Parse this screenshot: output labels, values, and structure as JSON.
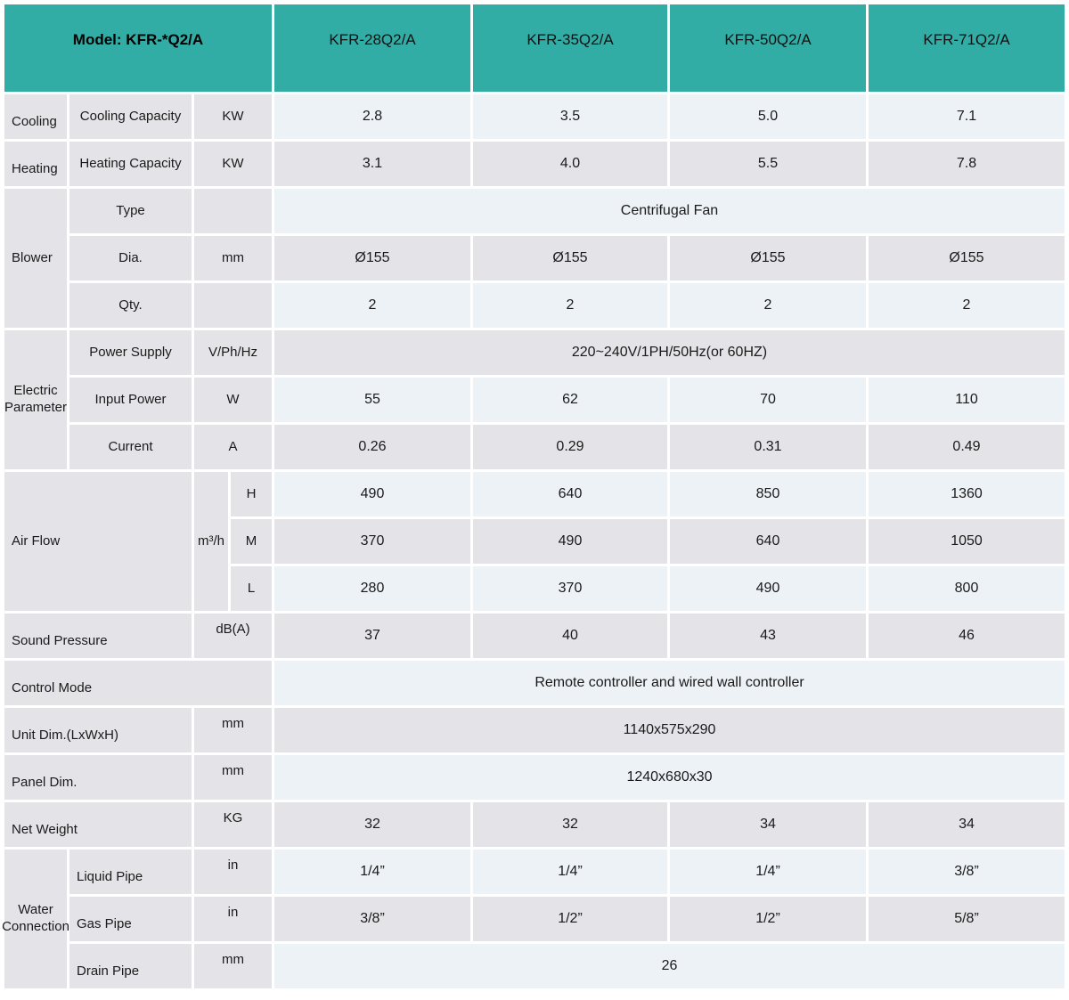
{
  "header": {
    "model_label": "Model: KFR-*Q2/A",
    "models": [
      "KFR-28Q2/A",
      "KFR-35Q2/A",
      "KFR-50Q2/A",
      "KFR-71Q2/A"
    ]
  },
  "colors": {
    "teal": "#32ada6",
    "cell_gray": "#e4e4e8",
    "cell_light": "#edf2f6"
  },
  "rows": {
    "cooling": {
      "group": "Cooling",
      "label": "Cooling Capacity",
      "unit": "KW",
      "values": [
        "2.8",
        "3.5",
        "5.0",
        "7.1"
      ]
    },
    "heating": {
      "group": "Heating",
      "label": "Heating Capacity",
      "unit": "KW",
      "values": [
        "3.1",
        "4.0",
        "5.5",
        "7.8"
      ]
    },
    "blower": {
      "group": "Blower",
      "type": {
        "label": "Type",
        "value": "Centrifugal Fan"
      },
      "dia": {
        "label": "Dia.",
        "unit": "mm",
        "values": [
          "Ø155",
          "Ø155",
          "Ø155",
          "Ø155"
        ]
      },
      "qty": {
        "label": "Qty.",
        "values": [
          "2",
          "2",
          "2",
          "2"
        ]
      }
    },
    "electric": {
      "group": "Electric Parameter",
      "power_supply": {
        "label": "Power Supply",
        "unit": "V/Ph/Hz",
        "value": "220~240V/1PH/50Hz(or 60HZ)"
      },
      "input_power": {
        "label": "Input Power",
        "unit": "W",
        "values": [
          "55",
          "62",
          "70",
          "110"
        ]
      },
      "current": {
        "label": "Current",
        "unit": "A",
        "values": [
          "0.26",
          "0.29",
          "0.31",
          "0.49"
        ]
      }
    },
    "air_flow": {
      "group": "Air Flow",
      "unit": "m³/h",
      "levels": [
        {
          "label": "H",
          "values": [
            "490",
            "640",
            "850",
            "1360"
          ]
        },
        {
          "label": "M",
          "values": [
            "370",
            "490",
            "640",
            "1050"
          ]
        },
        {
          "label": "L",
          "values": [
            "280",
            "370",
            "490",
            "800"
          ]
        }
      ]
    },
    "sound": {
      "group": "Sound Pressure",
      "unit": "dB(A)",
      "values": [
        "37",
        "40",
        "43",
        "46"
      ]
    },
    "control": {
      "group": "Control Mode",
      "value": "Remote controller and wired wall controller"
    },
    "unit_dim": {
      "group": "Unit Dim.(LxWxH)",
      "unit": "mm",
      "value": "1140x575x290"
    },
    "panel_dim": {
      "group": "Panel Dim.",
      "unit": "mm",
      "value": "1240x680x30"
    },
    "net_weight": {
      "group": "Net Weight",
      "unit": "KG",
      "values": [
        "32",
        "32",
        "34",
        "34"
      ]
    },
    "water": {
      "group": "Water Connection",
      "liquid": {
        "label": "Liquid Pipe",
        "unit": "in",
        "values": [
          "1/4”",
          "1/4”",
          "1/4”",
          "3/8”"
        ]
      },
      "gas": {
        "label": "Gas Pipe",
        "unit": "in",
        "values": [
          "3/8”",
          "1/2”",
          "1/2”",
          "5/8”"
        ]
      },
      "drain": {
        "label": "Drain Pipe",
        "unit": "mm",
        "value": "26"
      }
    }
  }
}
